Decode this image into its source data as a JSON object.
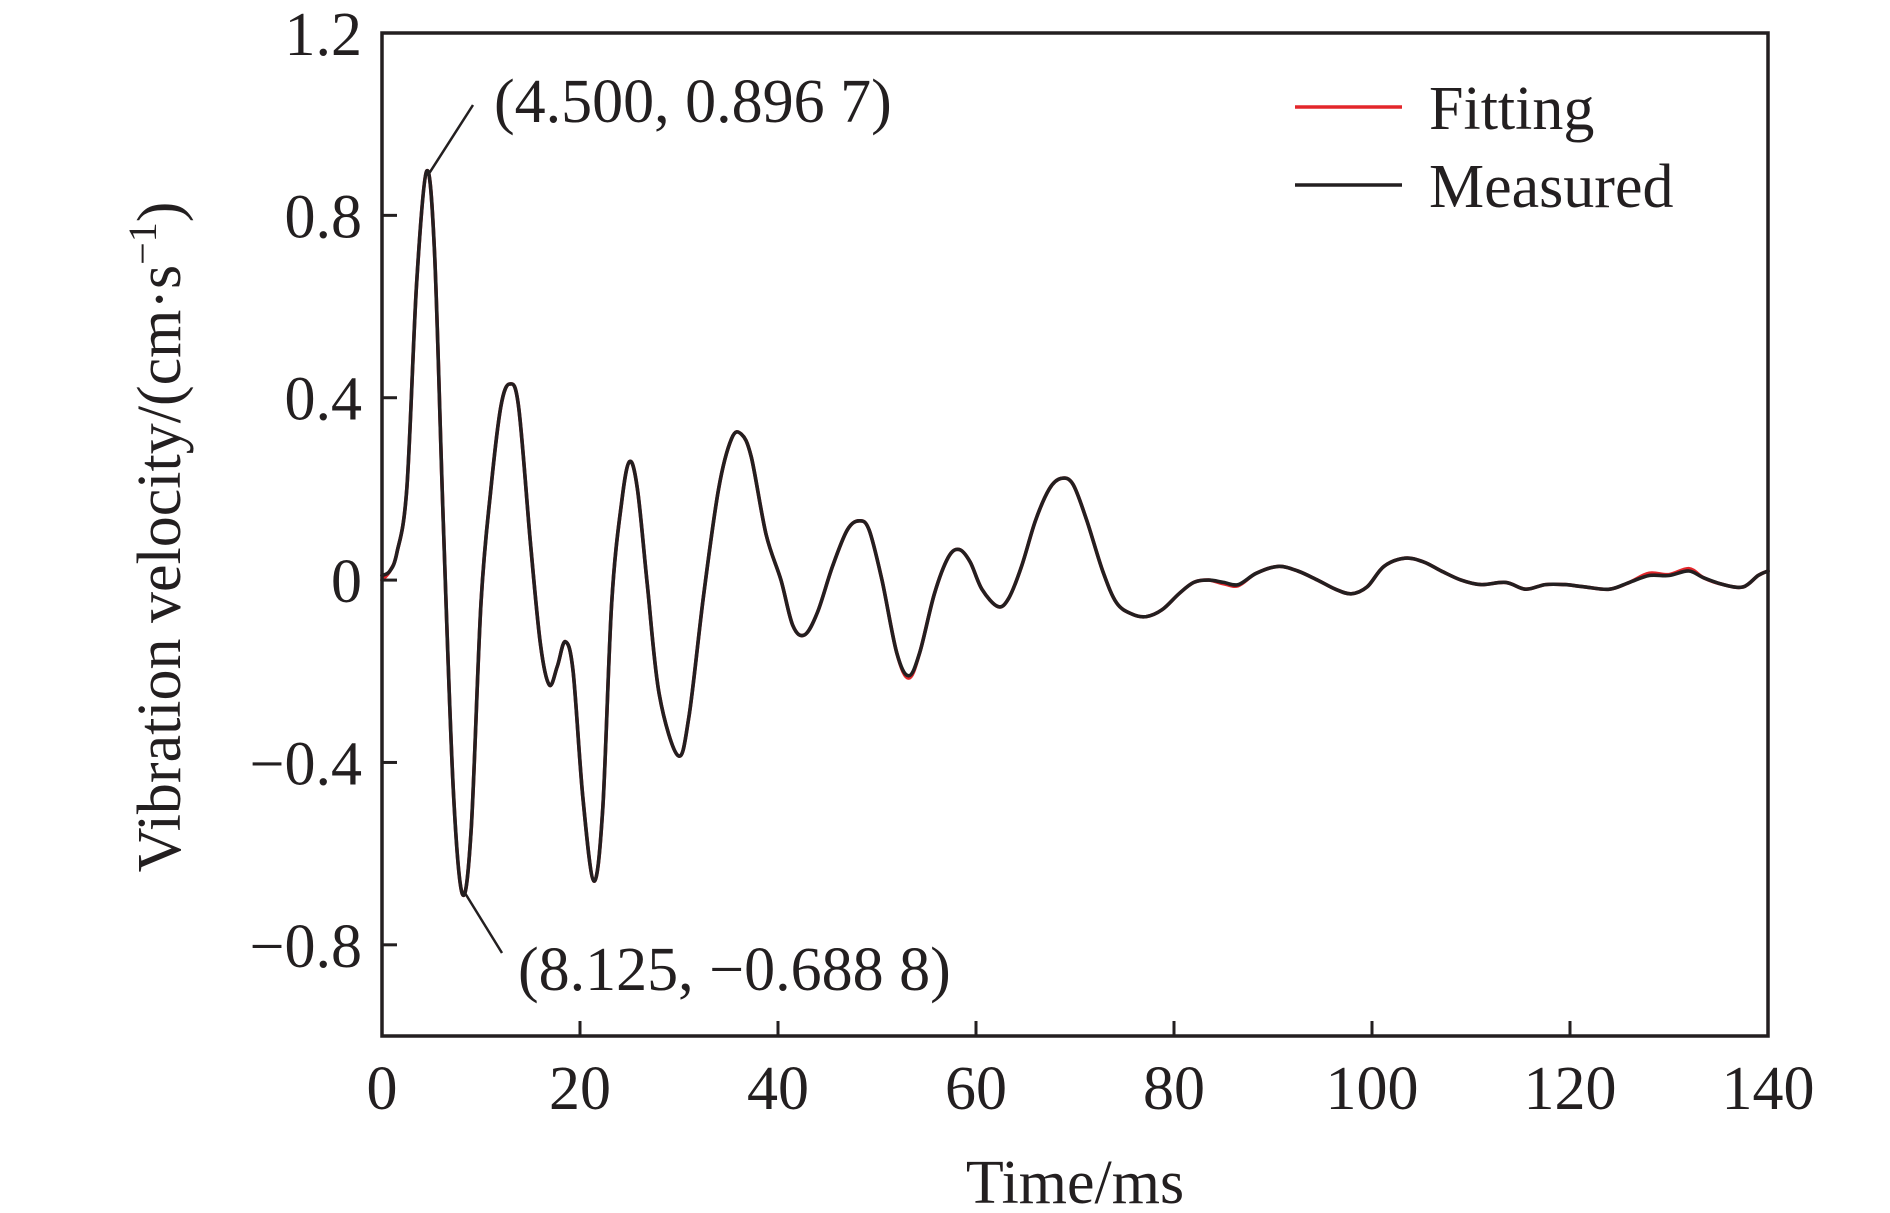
{
  "chart_data": {
    "type": "line",
    "xlabel": "Time/ms",
    "ylabel": {
      "text": "Vibration velocity/(cm·s",
      "superscript": "−1",
      "suffix": ")"
    },
    "xlim": [
      0,
      140
    ],
    "ylim": [
      -1.0,
      1.2
    ],
    "grid": false,
    "legend": {
      "position": "top-right"
    },
    "x_ticks": [
      {
        "value": 0,
        "label": "0"
      },
      {
        "value": 20,
        "label": "20"
      },
      {
        "value": 40,
        "label": "40"
      },
      {
        "value": 60,
        "label": "60"
      },
      {
        "value": 80,
        "label": "80"
      },
      {
        "value": 100,
        "label": "100"
      },
      {
        "value": 120,
        "label": "120"
      },
      {
        "value": 140,
        "label": "140"
      }
    ],
    "y_ticks": [
      {
        "value": -0.8,
        "label": "−0.8"
      },
      {
        "value": -0.4,
        "label": "−0.4"
      },
      {
        "value": 0,
        "label": "0"
      },
      {
        "value": 0.4,
        "label": "0.4"
      },
      {
        "value": 0.8,
        "label": "0.8"
      },
      {
        "value": 1.2,
        "label": "1.2"
      }
    ],
    "x": [
      0,
      0.8,
      1.5,
      2.5,
      3.5,
      4.5,
      5.3,
      6.2,
      7.2,
      8.125,
      9.0,
      10.0,
      11.0,
      12.0,
      12.9,
      13.8,
      15.0,
      16.0,
      16.9,
      17.7,
      18.5,
      19.3,
      20.3,
      21.4,
      22.3,
      23.2,
      24.2,
      25.0,
      25.8,
      26.8,
      28.0,
      29.9,
      31.0,
      32.5,
      34.0,
      35.3,
      36.3,
      37.3,
      38.8,
      40.3,
      41.5,
      42.7,
      44.0,
      45.5,
      47.0,
      48.2,
      49.2,
      50.5,
      52.0,
      53.2,
      54.3,
      55.8,
      57.2,
      58.3,
      59.4,
      60.6,
      62.2,
      63.3,
      64.6,
      66.0,
      67.4,
      68.6,
      69.8,
      71.2,
      72.8,
      74.2,
      75.8,
      77.2,
      78.8,
      80.5,
      82.0,
      83.5,
      85.0,
      86.5,
      88.3,
      90.5,
      92.5,
      94.5,
      96.3,
      97.9,
      99.5,
      101.2,
      103.3,
      105.2,
      107.0,
      109.0,
      111.0,
      113.5,
      115.5,
      117.5,
      119.5,
      121.5,
      124.0,
      126.0,
      128.0,
      130.0,
      132.0,
      133.5,
      135.5,
      137.5,
      139.0,
      140.0
    ],
    "series": [
      {
        "name": "Fitting",
        "color": "#e3262b",
        "values": [
          0.0,
          0.02,
          0.06,
          0.2,
          0.65,
          0.8967,
          0.72,
          0.12,
          -0.46,
          -0.6888,
          -0.55,
          -0.05,
          0.2,
          0.38,
          0.43,
          0.38,
          0.08,
          -0.14,
          -0.23,
          -0.19,
          -0.135,
          -0.2,
          -0.48,
          -0.66,
          -0.5,
          -0.05,
          0.17,
          0.26,
          0.2,
          -0.01,
          -0.25,
          -0.385,
          -0.3,
          -0.03,
          0.2,
          0.31,
          0.32,
          0.27,
          0.1,
          0.0,
          -0.1,
          -0.12,
          -0.07,
          0.03,
          0.11,
          0.13,
          0.11,
          0.0,
          -0.16,
          -0.215,
          -0.16,
          -0.03,
          0.05,
          0.067,
          0.04,
          -0.02,
          -0.058,
          -0.04,
          0.03,
          0.13,
          0.2,
          0.223,
          0.21,
          0.13,
          0.02,
          -0.05,
          -0.075,
          -0.08,
          -0.065,
          -0.03,
          -0.005,
          0.0,
          -0.008,
          -0.012,
          0.015,
          0.03,
          0.02,
          0.0,
          -0.02,
          -0.03,
          -0.015,
          0.03,
          0.048,
          0.04,
          0.02,
          0.0,
          -0.01,
          -0.005,
          -0.02,
          -0.01,
          -0.01,
          -0.015,
          -0.02,
          -0.005,
          0.015,
          0.012,
          0.025,
          0.005,
          -0.01,
          -0.015,
          0.01,
          0.02
        ]
      },
      {
        "name": "Measured",
        "color": "#231f20",
        "values": [
          0.01,
          0.02,
          0.06,
          0.2,
          0.65,
          0.8967,
          0.72,
          0.12,
          -0.46,
          -0.6888,
          -0.55,
          -0.05,
          0.2,
          0.38,
          0.43,
          0.38,
          0.08,
          -0.14,
          -0.23,
          -0.19,
          -0.135,
          -0.2,
          -0.48,
          -0.66,
          -0.5,
          -0.05,
          0.17,
          0.26,
          0.2,
          -0.01,
          -0.25,
          -0.385,
          -0.3,
          -0.03,
          0.2,
          0.31,
          0.32,
          0.27,
          0.1,
          0.0,
          -0.1,
          -0.12,
          -0.07,
          0.03,
          0.11,
          0.13,
          0.11,
          0.0,
          -0.16,
          -0.21,
          -0.16,
          -0.03,
          0.05,
          0.067,
          0.04,
          -0.02,
          -0.058,
          -0.04,
          0.03,
          0.13,
          0.2,
          0.223,
          0.21,
          0.13,
          0.02,
          -0.05,
          -0.075,
          -0.08,
          -0.065,
          -0.03,
          -0.005,
          0.0,
          -0.005,
          -0.01,
          0.015,
          0.03,
          0.02,
          0.0,
          -0.02,
          -0.03,
          -0.015,
          0.03,
          0.048,
          0.04,
          0.02,
          0.0,
          -0.01,
          -0.005,
          -0.02,
          -0.01,
          -0.01,
          -0.015,
          -0.02,
          -0.005,
          0.01,
          0.01,
          0.02,
          0.005,
          -0.01,
          -0.015,
          0.01,
          0.02
        ]
      }
    ],
    "annotations": [
      {
        "text": "(4.500, 0.896 7)",
        "x": 4.5,
        "y": 0.8967
      },
      {
        "text": "(8.125, −0.688 8)",
        "x": 8.125,
        "y": -0.6888
      }
    ]
  }
}
